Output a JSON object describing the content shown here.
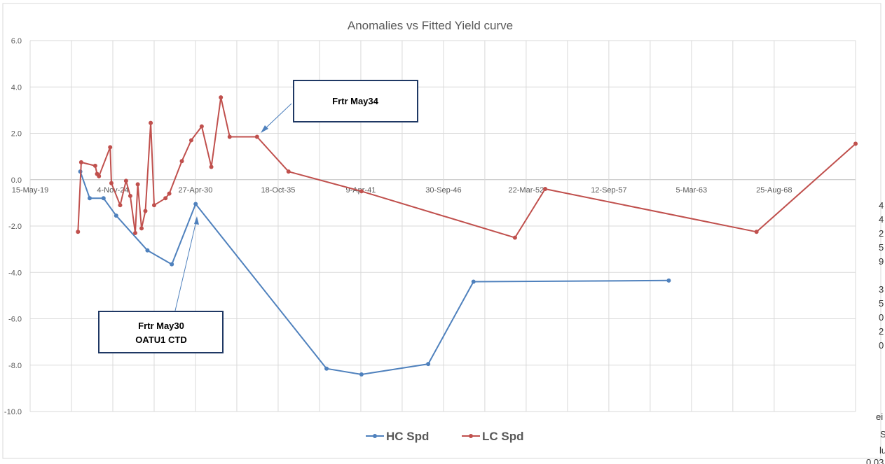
{
  "chart_data": {
    "type": "line",
    "title": "Anomalies vs Fitted Yield curve",
    "xlabel": "",
    "ylabel": "",
    "x_is_date": true,
    "xlim": [
      "2019-05-15",
      "2074-01-15"
    ],
    "x_ticks": [
      "2019-05-15",
      "2024-11-04",
      "2030-04-27",
      "2035-10-18",
      "2041-04-09",
      "2046-09-30",
      "2052-03-22",
      "2057-09-12",
      "2063-03-05",
      "2068-08-25"
    ],
    "x_tick_labels": [
      "15-May-19",
      "4-Nov-24",
      "27-Apr-30",
      "18-Oct-35",
      "9-Apr-41",
      "30-Sep-46",
      "22-Mar-52",
      "12-Sep-57",
      "5-Mar-63",
      "25-Aug-68"
    ],
    "ylim": [
      -10,
      6
    ],
    "y_ticks": [
      6,
      4,
      2,
      0,
      -2,
      -4,
      -6,
      -8,
      -10
    ],
    "y_tick_labels": [
      "6.0",
      "4.0",
      "2.0",
      "0.0",
      "-2.0",
      "-4.0",
      "-6.0",
      "-8.0",
      "-10.0"
    ],
    "grid": true,
    "legend": "bottom",
    "series": [
      {
        "name": "HC Spd",
        "color": "#4f81bd",
        "x": [
          "2022-09-10",
          "2023-04-25",
          "2024-03-25",
          "2025-01-25",
          "2027-02-20",
          "2028-10-01",
          "2030-05-01",
          "2039-01-01",
          "2041-04-25",
          "2045-09-25",
          "2048-09-25",
          "2061-09-01"
        ],
        "y": [
          0.35,
          -0.8,
          -0.8,
          -1.55,
          -3.05,
          -3.65,
          -1.05,
          -8.15,
          -8.4,
          -7.95,
          -4.4,
          -4.35
        ]
      },
      {
        "name": "LC Spd",
        "color": "#c0504d",
        "x": [
          "2022-07-15",
          "2022-10-01",
          "2023-09-05",
          "2023-10-20",
          "2023-12-05",
          "2024-09-01",
          "2024-10-01",
          "2025-05-01",
          "2025-09-20",
          "2026-01-01",
          "2026-05-01",
          "2026-07-01",
          "2026-10-01",
          "2027-01-01",
          "2027-05-10",
          "2027-08-01",
          "2028-05-01",
          "2028-08-01",
          "2029-06-01",
          "2030-01-15",
          "2030-09-25",
          "2031-05-15",
          "2032-01-01",
          "2032-08-01",
          "2034-05-25",
          "2036-06-25",
          "2041-04-25",
          "2051-06-25",
          "2053-06-25",
          "2067-06-25",
          "2074-01-15"
        ],
        "y": [
          -2.25,
          0.75,
          0.6,
          0.25,
          0.15,
          1.4,
          -0.15,
          -1.1,
          -0.05,
          -0.7,
          -2.3,
          -0.2,
          -2.1,
          -1.35,
          2.45,
          -1.1,
          -0.8,
          -0.6,
          0.8,
          1.7,
          2.3,
          0.55,
          3.55,
          1.85,
          1.85,
          0.35,
          -0.5,
          -2.5,
          -0.4,
          -2.25,
          1.55
        ]
      }
    ],
    "annotations": [
      {
        "lines": [
          "Frtr May34"
        ],
        "arrow_to": {
          "x": "2034-05-25",
          "y": 2.0
        }
      },
      {
        "lines": [
          "Frtr May30",
          "OATU1 CTD"
        ],
        "arrow_to": {
          "x": "2030-05-01",
          "y": -1.45
        }
      }
    ]
  },
  "edge_fragments": [
    "4",
    "4",
    "2",
    "5",
    "9",
    "3",
    "5",
    "0",
    "2",
    "0",
    "ei",
    "S",
    "lu",
    "0.03"
  ]
}
